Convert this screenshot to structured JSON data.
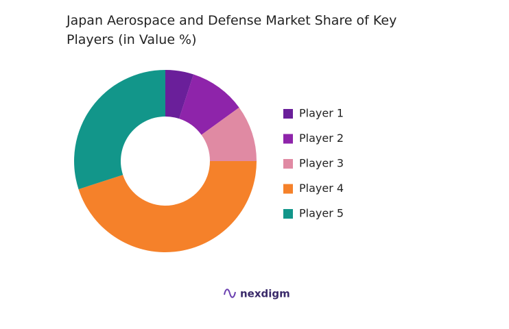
{
  "chart_data": {
    "type": "donut",
    "title": "Japan Aerospace and Defense Market Share of Key Players (in Value %)",
    "categories": [
      "Player 1",
      "Player 2",
      "Player 3",
      "Player 4",
      "Player 5"
    ],
    "values": [
      5,
      10,
      10,
      45,
      30
    ],
    "colors": [
      "#6a1f9a",
      "#8e24aa",
      "#e08aa3",
      "#f5812a",
      "#12968a"
    ],
    "legend": "right"
  },
  "footer": {
    "logo": "nexdigm"
  }
}
